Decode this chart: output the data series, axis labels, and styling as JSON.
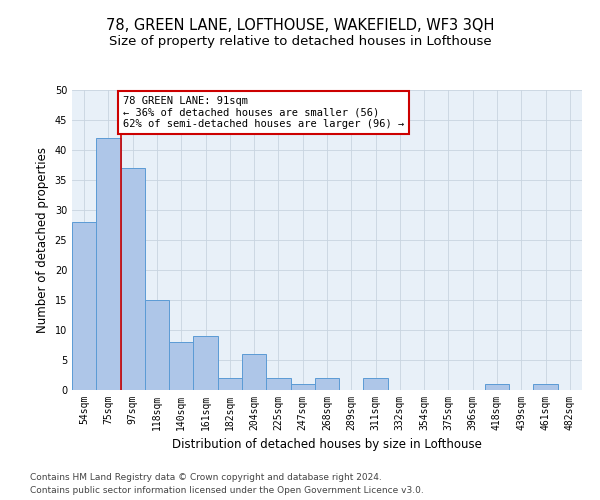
{
  "title": "78, GREEN LANE, LOFTHOUSE, WAKEFIELD, WF3 3QH",
  "subtitle": "Size of property relative to detached houses in Lofthouse",
  "xlabel": "Distribution of detached houses by size in Lofthouse",
  "ylabel": "Number of detached properties",
  "categories": [
    "54sqm",
    "75sqm",
    "97sqm",
    "118sqm",
    "140sqm",
    "161sqm",
    "182sqm",
    "204sqm",
    "225sqm",
    "247sqm",
    "268sqm",
    "289sqm",
    "311sqm",
    "332sqm",
    "354sqm",
    "375sqm",
    "396sqm",
    "418sqm",
    "439sqm",
    "461sqm",
    "482sqm"
  ],
  "values": [
    28,
    42,
    37,
    15,
    8,
    9,
    2,
    6,
    2,
    1,
    2,
    0,
    2,
    0,
    0,
    0,
    0,
    1,
    0,
    1,
    0
  ],
  "bar_color": "#aec6e8",
  "bar_edge_color": "#5b9bd5",
  "vline_x": 1.5,
  "annotation_title": "78 GREEN LANE: 91sqm",
  "annotation_line1": "← 36% of detached houses are smaller (56)",
  "annotation_line2": "62% of semi-detached houses are larger (96) →",
  "annotation_box_color": "#ffffff",
  "annotation_box_edge": "#cc0000",
  "vline_color": "#cc0000",
  "ylim": [
    0,
    50
  ],
  "yticks": [
    0,
    5,
    10,
    15,
    20,
    25,
    30,
    35,
    40,
    45,
    50
  ],
  "footer_line1": "Contains HM Land Registry data © Crown copyright and database right 2024.",
  "footer_line2": "Contains public sector information licensed under the Open Government Licence v3.0.",
  "grid_color": "#c8d4e0",
  "bg_color": "#e8f0f8",
  "title_fontsize": 10.5,
  "subtitle_fontsize": 9.5,
  "tick_fontsize": 7,
  "ylabel_fontsize": 8.5,
  "xlabel_fontsize": 8.5,
  "footer_fontsize": 6.5,
  "annotation_fontsize": 7.5
}
